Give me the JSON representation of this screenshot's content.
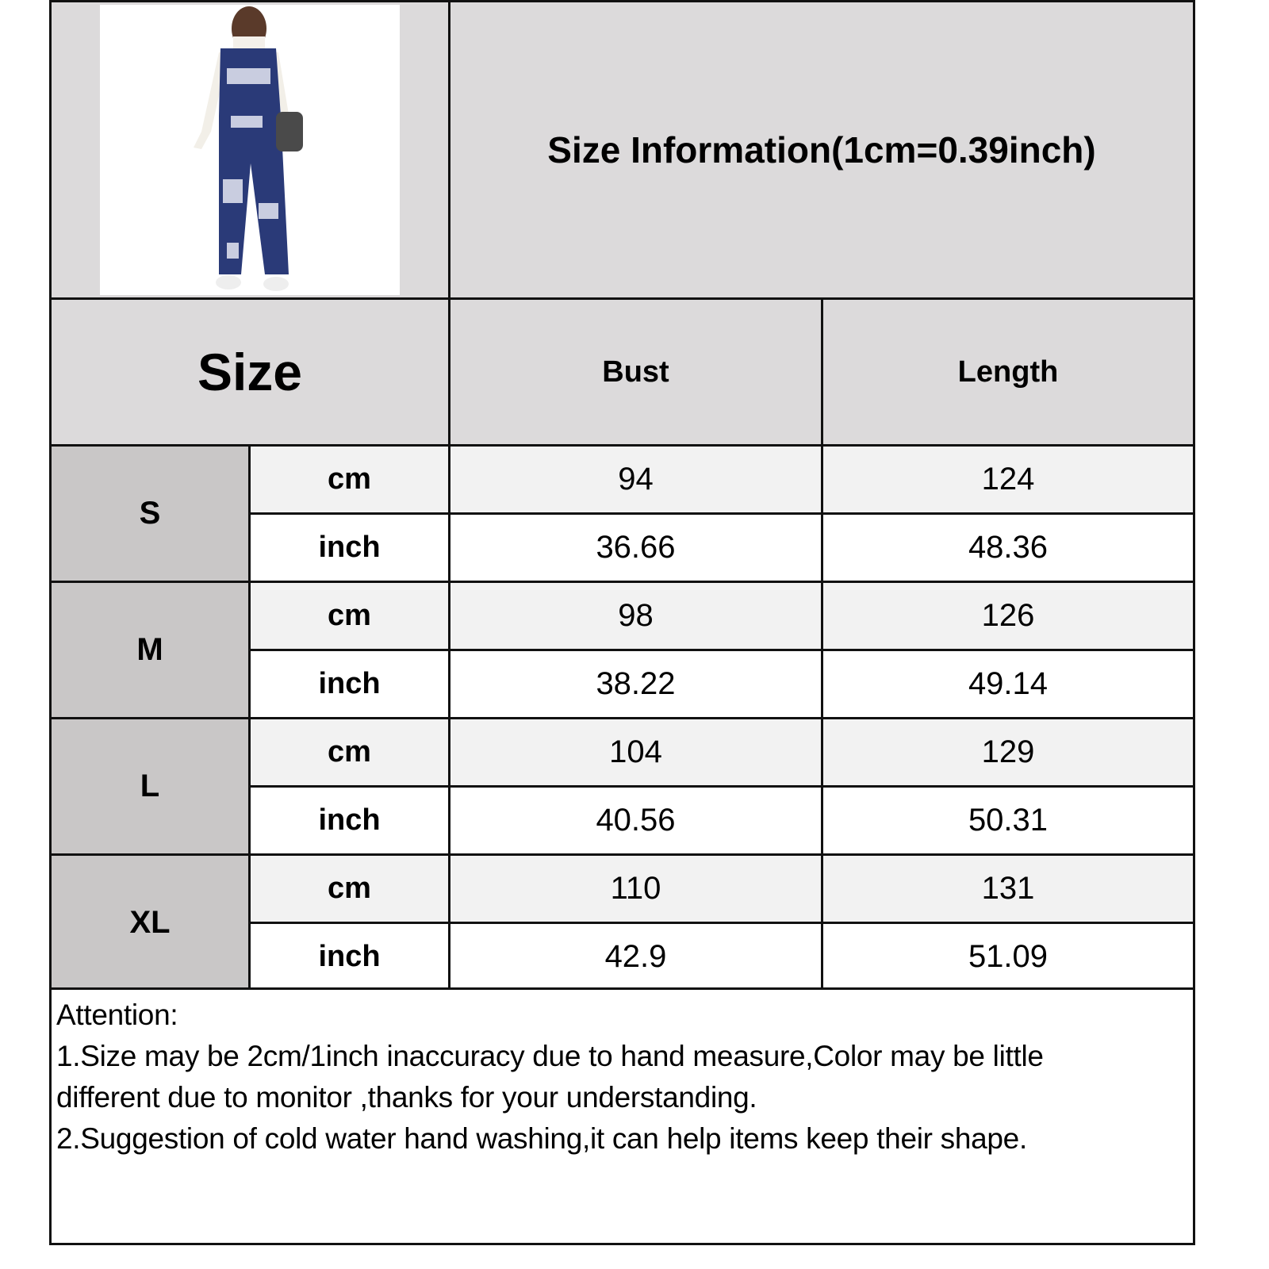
{
  "title": "Size Information(1cm=0.39inch)",
  "header": {
    "size": "Size",
    "bust": "Bust",
    "length": "Length"
  },
  "rows": [
    {
      "size": "S",
      "cm": {
        "unit": "cm",
        "bust": "94",
        "length": "124"
      },
      "inch": {
        "unit": "inch",
        "bust": "36.66",
        "length": "48.36"
      }
    },
    {
      "size": "M",
      "cm": {
        "unit": "cm",
        "bust": "98",
        "length": "126"
      },
      "inch": {
        "unit": "inch",
        "bust": "38.22",
        "length": "49.14"
      }
    },
    {
      "size": "L",
      "cm": {
        "unit": "cm",
        "bust": "104",
        "length": "129"
      },
      "inch": {
        "unit": "inch",
        "bust": "40.56",
        "length": "50.31"
      }
    },
    {
      "size": "XL",
      "cm": {
        "unit": "cm",
        "bust": "110",
        "length": "131"
      },
      "inch": {
        "unit": "inch",
        "bust": "42.9",
        "length": "51.09"
      }
    }
  ],
  "notes": {
    "heading": "Attention:",
    "line1": "1.Size may be 2cm/1inch inaccuracy due to hand measure,Color may be little",
    "line2": "different due to monitor ,thanks for your understanding.",
    "line3": "2.Suggestion of cold water hand washing,it can help items keep their shape."
  },
  "colors": {
    "header_bg": "#dcdadb",
    "size_bg": "#c9c7c7",
    "cm_row_bg": "#f2f2f2",
    "inch_row_bg": "#ffffff",
    "garment": "#1f2f6b"
  }
}
